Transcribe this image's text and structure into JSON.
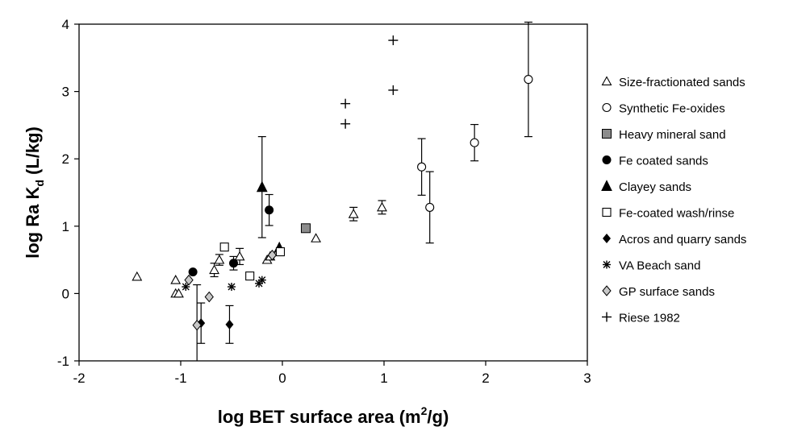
{
  "chart_data": {
    "type": "scatter",
    "xlabel": "log BET surface area (m",
    "xlabel_sup": "2",
    "xlabel_end": "/g)",
    "ylabel": "log Ra K",
    "ylabel_sub": "d",
    "ylabel_end": " (L/kg)",
    "xlim": [
      -2,
      3
    ],
    "ylim": [
      -1,
      4
    ],
    "xticks": [
      "-2",
      "-1",
      "0",
      "1",
      "2",
      "3"
    ],
    "yticks": [
      "-1",
      "0",
      "1",
      "2",
      "3",
      "4"
    ],
    "grid": false,
    "legend_position": "right",
    "series": [
      {
        "name": "Size-fractionated sands",
        "marker": "triangle-open",
        "points": [
          [
            -1.43,
            0.25
          ],
          [
            -1.05,
            0.0
          ],
          [
            -1.02,
            0.0
          ],
          [
            -1.05,
            0.2
          ],
          [
            -0.67,
            0.35
          ],
          [
            -0.62,
            0.5
          ],
          [
            -0.42,
            0.55
          ],
          [
            -0.15,
            0.5
          ],
          [
            -0.12,
            0.55
          ],
          [
            0.33,
            0.82
          ],
          [
            0.7,
            1.18
          ],
          [
            0.98,
            1.28
          ]
        ],
        "errors": [
          null,
          null,
          null,
          null,
          0.1,
          0.08,
          0.12,
          null,
          null,
          null,
          0.1,
          0.1
        ]
      },
      {
        "name": "Synthetic Fe-oxides",
        "marker": "circle-open",
        "points": [
          [
            1.37,
            1.88
          ],
          [
            1.45,
            1.28
          ],
          [
            1.89,
            2.24
          ],
          [
            2.42,
            3.18
          ]
        ],
        "errors": [
          0.42,
          0.53,
          0.27,
          0.85
        ]
      },
      {
        "name": "Heavy mineral sand",
        "marker": "square-gray",
        "points": [
          [
            0.23,
            0.97
          ]
        ],
        "errors": [
          null
        ]
      },
      {
        "name": "Fe coated sands",
        "marker": "circle-filled",
        "points": [
          [
            -0.88,
            0.32
          ],
          [
            -0.48,
            0.45
          ],
          [
            -0.13,
            1.24
          ]
        ],
        "errors": [
          null,
          0.1,
          0.23
        ]
      },
      {
        "name": "Clayey sands",
        "marker": "triangle-filled",
        "points": [
          [
            -0.2,
            1.58
          ],
          [
            -0.03,
            0.68
          ]
        ],
        "errors": [
          0.75,
          null
        ]
      },
      {
        "name": "Fe-coated wash/rinse",
        "marker": "square-open",
        "points": [
          [
            -0.57,
            0.69
          ],
          [
            -0.32,
            0.26
          ],
          [
            -0.02,
            0.62
          ]
        ],
        "errors": [
          null,
          null,
          null
        ]
      },
      {
        "name": "Acros and quarry sands",
        "marker": "diamond-filled",
        "points": [
          [
            -0.8,
            -0.44
          ],
          [
            -0.52,
            -0.46
          ]
        ],
        "errors": [
          0.3,
          0.28
        ]
      },
      {
        "name": "VA Beach sand",
        "marker": "star",
        "points": [
          [
            -0.95,
            0.1
          ],
          [
            -0.5,
            0.1
          ],
          [
            -0.23,
            0.15
          ],
          [
            -0.2,
            0.2
          ]
        ],
        "errors": [
          null,
          null,
          null,
          null
        ]
      },
      {
        "name": "GP surface sands",
        "marker": "diamond-gray",
        "points": [
          [
            -0.92,
            0.2
          ],
          [
            -0.72,
            -0.05
          ],
          [
            -0.84,
            -0.47
          ],
          [
            -0.1,
            0.57
          ]
        ],
        "errors": [
          null,
          null,
          0.6,
          null
        ]
      },
      {
        "name": "Riese 1982",
        "marker": "plus",
        "points": [
          [
            0.62,
            2.82
          ],
          [
            0.62,
            2.52
          ],
          [
            1.09,
            3.76
          ],
          [
            1.09,
            3.02
          ]
        ],
        "errors": [
          null,
          null,
          null,
          null
        ]
      }
    ]
  }
}
